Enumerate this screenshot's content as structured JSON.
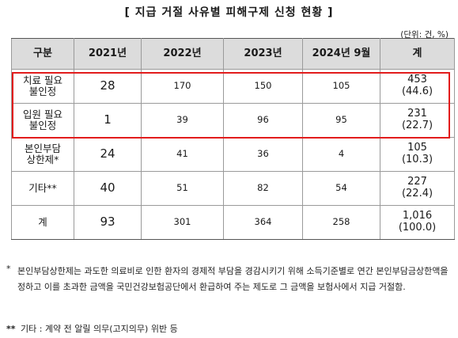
{
  "title": "[ 지급 거절 사유별 피해구제 신청 현황 ]",
  "unit": "(단위: 건, %)",
  "table": {
    "headers": [
      "구분",
      "2021년",
      "2022년",
      "2023년",
      "2024년 9월",
      "계"
    ],
    "rows": [
      {
        "label": [
          "치료 필요",
          "불인정"
        ],
        "values": [
          "28",
          "170",
          "150",
          "105"
        ],
        "total": [
          "453",
          "(44.6)"
        ]
      },
      {
        "label": [
          "입원 필요",
          "불인정"
        ],
        "values": [
          "1",
          "39",
          "96",
          "95"
        ],
        "total": [
          "231",
          "(22.7)"
        ]
      },
      {
        "label": [
          "본인부담",
          "상한제*"
        ],
        "values": [
          "24",
          "41",
          "36",
          "4"
        ],
        "total": [
          "105",
          "(10.3)"
        ]
      },
      {
        "label": [
          "기타**",
          ""
        ],
        "values": [
          "40",
          "51",
          "82",
          "54"
        ],
        "total": [
          "227",
          "(22.4)"
        ]
      },
      {
        "label": [
          "계",
          ""
        ],
        "values": [
          "93",
          "301",
          "364",
          "258"
        ],
        "total": [
          "1,016",
          "(100.0)"
        ]
      }
    ]
  },
  "highlight_color": "#e21c1c",
  "notes": {
    "note1_mark": "*",
    "note1_text": "본인부담상한제는 과도한 의료비로 인한 환자의 경제적 부담을 경감시키기 위해 소득기준별로 연간 본인부담금상한액을 정하고 이를 초과한 금액을 국민건강보험공단에서 환급하여 주는 제도로 그 금액을 보험사에서 지급 거절함.",
    "note2_mark": "**",
    "note2_text": "기타 : 계약 전 알릴 의무(고지의무) 위반 등"
  }
}
